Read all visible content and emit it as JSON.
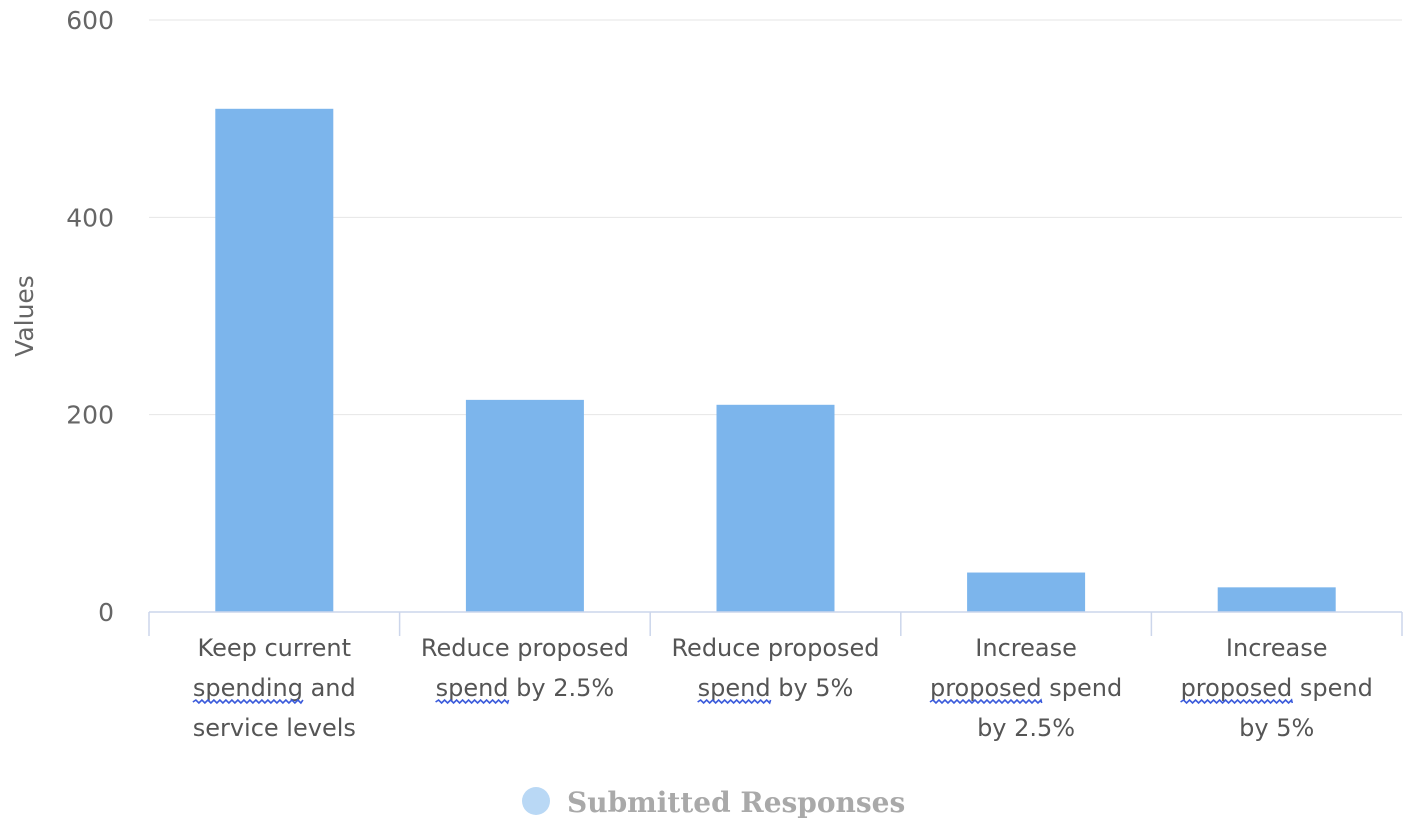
{
  "chart_data": {
    "type": "bar",
    "title": "",
    "xlabel": "",
    "ylabel": "Values",
    "ylim": [
      0,
      600
    ],
    "yticks": [
      0,
      200,
      400,
      600
    ],
    "grid": true,
    "legend_placement": "bottom-center",
    "categories": [
      [
        "Keep current",
        "spending and",
        "service levels"
      ],
      [
        "Reduce proposed",
        "spend by 2.5%"
      ],
      [
        "Reduce proposed",
        "spend by 5%"
      ],
      [
        "Increase",
        "proposed spend",
        "by 2.5%"
      ],
      [
        "Increase",
        "proposed spend",
        "by 5%"
      ]
    ],
    "series": [
      {
        "name": "Submitted Responses",
        "values": [
          510,
          215,
          210,
          40,
          25
        ],
        "color": "#7cb5ec"
      }
    ]
  },
  "colors": {
    "bar": "#7cb5ec",
    "legend_marker": "#b9d8f5",
    "grid": "#e6e6e6",
    "axis": "#ccd6eb"
  },
  "spellcheck_words": [
    "spending",
    "spend",
    "spend",
    "proposed",
    "proposed"
  ]
}
